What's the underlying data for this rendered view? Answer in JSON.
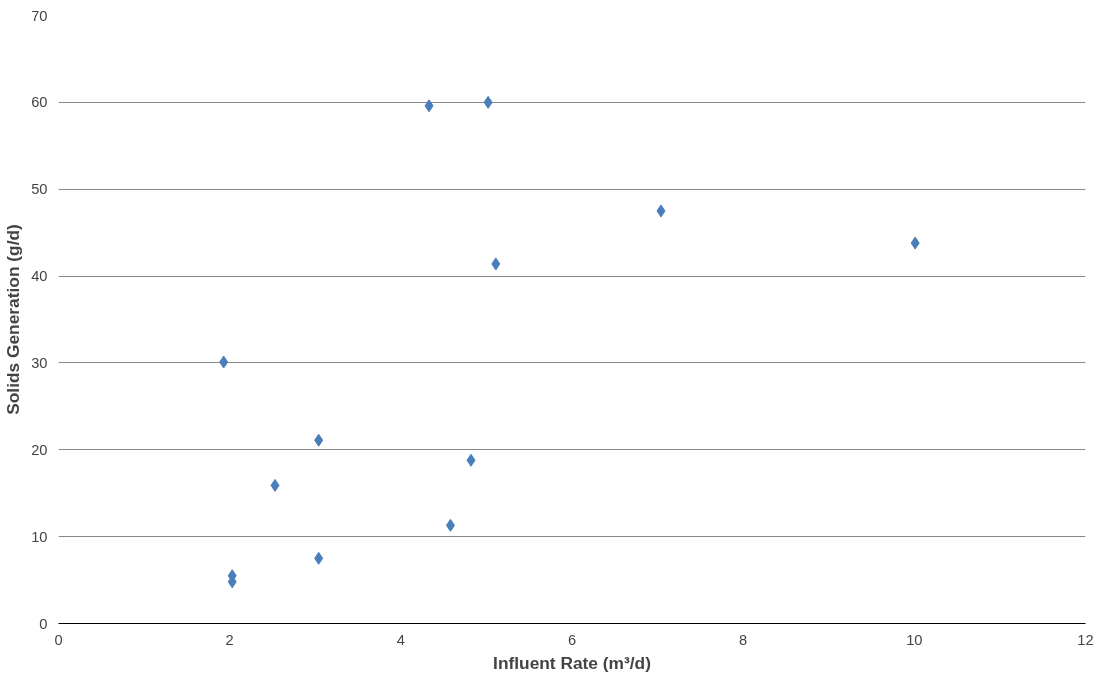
{
  "chart_data": {
    "type": "scatter",
    "xlabel": "Influent Rate (m³/d)",
    "ylabel": "Solids Generation (g/d)",
    "x": [
      2.03,
      2.03,
      1.93,
      2.53,
      3.04,
      3.04,
      4.33,
      5.02,
      4.58,
      4.82,
      5.11,
      7.04,
      10.01
    ],
    "series": [
      {
        "color": "#4a7ebb",
        "values": [
          4.8,
          5.5,
          30.1,
          15.9,
          21.1,
          7.5,
          59.6,
          60.0,
          11.3,
          18.8,
          41.4,
          47.5,
          43.8
        ]
      }
    ],
    "xlim": [
      0,
      12
    ],
    "xticks": [
      0,
      2,
      4,
      6,
      8,
      10,
      12
    ],
    "ylim": [
      0,
      70
    ],
    "yticks": [
      0,
      10,
      20,
      30,
      40,
      50,
      60,
      70
    ],
    "grid": "y",
    "marker": "diamond"
  }
}
